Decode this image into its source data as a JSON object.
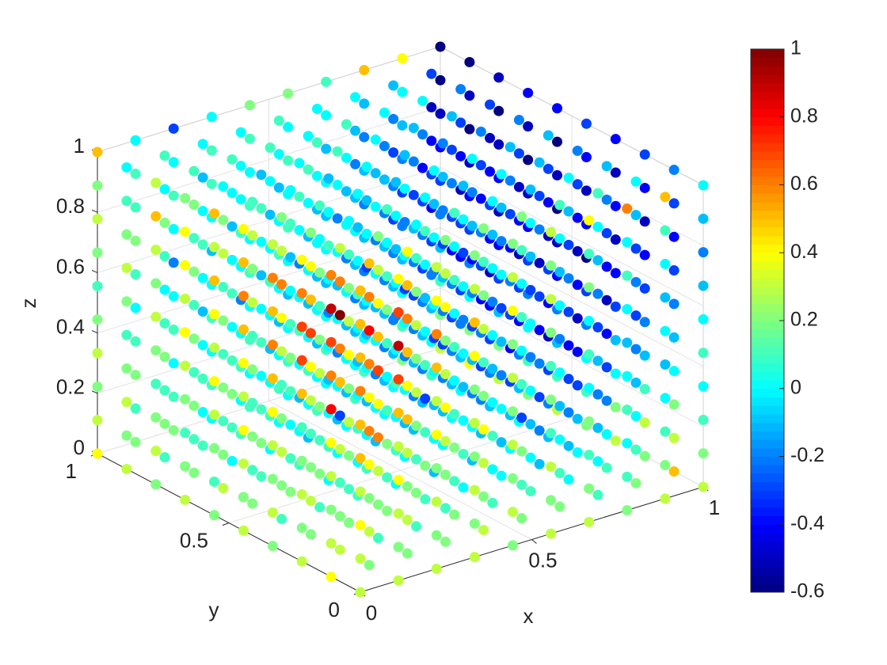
{
  "chart_data": {
    "type": "scatter3d",
    "x_label": "x",
    "y_label": "y",
    "z_label": "z",
    "x": [
      0,
      0.1111,
      0.2222,
      0.3333,
      0.4444,
      0.5556,
      0.6667,
      0.7778,
      0.8889,
      1
    ],
    "y": [
      0,
      0.1111,
      0.2222,
      0.3333,
      0.4444,
      0.5556,
      0.6667,
      0.7778,
      0.8889,
      1
    ],
    "z": [
      0,
      0.1111,
      0.2222,
      0.3333,
      0.4444,
      0.5556,
      0.6667,
      0.7778,
      0.8889,
      1
    ],
    "xlim": [
      0,
      1
    ],
    "ylim": [
      0,
      1
    ],
    "zlim": [
      0,
      1
    ],
    "xticks": [
      0,
      0.5,
      1
    ],
    "yticks": [
      0,
      0.5,
      1
    ],
    "zticks": [
      0,
      0.2,
      0.4,
      0.6,
      0.8,
      1
    ],
    "colormap": "jet",
    "clim": [
      -0.6,
      1
    ],
    "cticks": [
      -0.6,
      -0.4,
      -0.2,
      0,
      0.2,
      0.4,
      0.6,
      0.8,
      1
    ],
    "grid": true,
    "values": [
      [
        [
          0.3,
          0.3,
          0.4,
          0.3,
          0.5,
          0.5,
          0.6,
          0.5,
          0.5,
          0.5
        ],
        [
          0.4,
          0.3,
          0.2,
          0.3,
          0.4,
          0.8,
          0.6,
          0.7,
          0.9,
          0.6
        ],
        [
          0.3,
          0.2,
          0.3,
          0.2,
          0.1,
          0.5,
          0.7,
          0.7,
          0.6,
          0.4
        ],
        [
          0.2,
          0.3,
          0.2,
          0.3,
          0.4,
          0.5,
          0.6,
          0.5,
          0.6,
          0.3
        ],
        [
          0.3,
          0.2,
          0.3,
          0.4,
          0.3,
          0.4,
          0.5,
          0.6,
          0.5,
          0.4
        ],
        [
          0.2,
          0.1,
          0.2,
          0.3,
          0.4,
          0.3,
          0.4,
          0.5,
          0.3,
          0.5
        ],
        [
          0.3,
          0.2,
          0.1,
          0.2,
          0.3,
          0.4,
          0.3,
          0.4,
          0.4,
          0.2
        ],
        [
          0.2,
          0.3,
          0.2,
          0.1,
          0.2,
          0.3,
          0.2,
          0.3,
          0.5,
          0.3
        ],
        [
          0.3,
          0.2,
          0.3,
          0.2,
          0.1,
          0.2,
          0.3,
          0.2,
          0.1,
          0.0
        ],
        [
          0.4,
          0.3,
          0.2,
          0.3,
          0.2,
          0.1,
          0.2,
          0.3,
          0.2,
          0.5
        ]
      ],
      [
        [
          0.3,
          0.2,
          0.3,
          0.4,
          0.3,
          0.5,
          0.7,
          0.9,
          0.7,
          0.4
        ],
        [
          0.2,
          0.3,
          0.2,
          0.4,
          0.6,
          0.4,
          0.6,
          0.8,
          0.6,
          0.5
        ],
        [
          0.3,
          0.2,
          0.1,
          0.3,
          -0.3,
          0.5,
          0.6,
          1.0,
          0.6,
          0.3
        ],
        [
          0.2,
          0.3,
          0.2,
          0.1,
          0.3,
          0.4,
          0.7,
          0.5,
          0.4,
          0.2
        ],
        [
          0.1,
          0.2,
          0.3,
          0.2,
          0.1,
          0.3,
          0.4,
          0.6,
          0.3,
          0.2
        ],
        [
          0.2,
          0.1,
          0.2,
          0.1,
          0.2,
          0.1,
          0.3,
          0.2,
          0.3,
          0.1
        ],
        [
          0.3,
          0.2,
          0.1,
          0.2,
          0.1,
          0.2,
          0.1,
          0.3,
          0.2,
          0.0
        ],
        [
          0.2,
          0.1,
          0.2,
          0.1,
          0.2,
          0.1,
          0.2,
          0.1,
          0.2,
          0.1
        ],
        [
          0.1,
          0.2,
          0.1,
          0.2,
          0.1,
          0.0,
          0.1,
          0.2,
          0.0,
          0.1
        ],
        [
          0.2,
          0.1,
          0.2,
          0.1,
          0.0,
          0.1,
          0.2,
          0.1,
          0.1,
          0.0
        ]
      ],
      [
        [
          0.3,
          0.2,
          0.3,
          0.2,
          0.4,
          0.3,
          0.5,
          0.6,
          0.4,
          0.3
        ],
        [
          0.2,
          0.3,
          0.2,
          0.3,
          0.5,
          0.4,
          0.5,
          0.6,
          0.5,
          0.4
        ],
        [
          0.1,
          0.2,
          0.3,
          0.6,
          0.4,
          0.7,
          0.5,
          0.4,
          0.3,
          0.2
        ],
        [
          0.2,
          0.1,
          0.2,
          0.3,
          0.2,
          0.4,
          0.3,
          0.2,
          0.1,
          0.0
        ],
        [
          0.1,
          0.2,
          0.1,
          0.2,
          0.3,
          0.2,
          0.1,
          0.2,
          0.0,
          0.1
        ],
        [
          0.2,
          0.1,
          0.0,
          0.1,
          0.2,
          0.1,
          0.0,
          -0.1,
          0.1,
          0.0
        ],
        [
          0.1,
          0.2,
          0.1,
          0.0,
          0.1,
          0.0,
          -0.1,
          0.0,
          0.1,
          -0.1
        ],
        [
          0.0,
          0.1,
          0.2,
          0.1,
          0.0,
          0.1,
          0.0,
          -0.1,
          0.0,
          0.1
        ],
        [
          0.1,
          0.0,
          0.1,
          0.0,
          -0.1,
          0.0,
          0.1,
          0.0,
          -0.1,
          0.0
        ],
        [
          0.2,
          0.1,
          0.0,
          0.1,
          0.0,
          -0.2,
          0.0,
          0.1,
          0.0,
          -0.3
        ]
      ],
      [
        [
          0.3,
          0.2,
          0.3,
          0.2,
          0.3,
          0.2,
          0.4,
          0.5,
          0.3,
          0.2
        ],
        [
          0.2,
          0.1,
          0.2,
          0.3,
          0.4,
          0.3,
          0.2,
          0.4,
          0.3,
          0.2
        ],
        [
          0.1,
          0.2,
          0.1,
          0.2,
          0.3,
          0.2,
          0.3,
          0.2,
          0.1,
          0.0
        ],
        [
          0.2,
          0.1,
          0.2,
          0.1,
          0.0,
          0.1,
          0.2,
          0.1,
          0.0,
          0.1
        ],
        [
          0.1,
          0.0,
          0.1,
          0.0,
          -0.1,
          0.0,
          0.1,
          0.0,
          -0.1,
          0.0
        ],
        [
          0.0,
          0.1,
          0.0,
          -0.1,
          0.0,
          -0.2,
          0.0,
          0.1,
          0.0,
          -0.1
        ],
        [
          0.1,
          0.0,
          -0.1,
          0.0,
          0.1,
          0.0,
          -0.2,
          0.0,
          0.1,
          0.0
        ],
        [
          0.0,
          0.1,
          0.0,
          -0.1,
          0.0,
          0.1,
          0.0,
          -0.1,
          0.0,
          0.1
        ],
        [
          0.1,
          0.0,
          0.1,
          0.0,
          -0.2,
          0.0,
          0.1,
          0.0,
          0.0,
          0.0
        ],
        [
          0.0,
          0.1,
          0.0,
          0.1,
          0.0,
          -0.1,
          0.0,
          0.1,
          0.1,
          0.0
        ]
      ],
      [
        [
          0.2,
          0.3,
          0.2,
          0.3,
          0.2,
          0.3,
          0.2,
          0.4,
          0.3,
          0.2
        ],
        [
          0.3,
          0.2,
          0.3,
          0.4,
          0.2,
          0.1,
          0.3,
          0.2,
          0.1,
          0.2
        ],
        [
          0.2,
          0.1,
          0.2,
          0.1,
          0.0,
          0.1,
          0.0,
          0.1,
          0.0,
          0.1
        ],
        [
          0.1,
          0.2,
          0.1,
          -0.3,
          0.1,
          0.0,
          -0.1,
          0.0,
          0.1,
          0.0
        ],
        [
          0.0,
          0.1,
          0.0,
          0.1,
          0.0,
          -0.2,
          0.0,
          -0.1,
          0.0,
          -0.1
        ],
        [
          0.1,
          0.0,
          -0.1,
          0.0,
          -0.1,
          0.0,
          -0.3,
          0.0,
          -0.1,
          0.0
        ],
        [
          0.0,
          -0.1,
          0.0,
          -0.2,
          0.0,
          -0.1,
          0.0,
          -0.2,
          0.0,
          0.1
        ],
        [
          -0.1,
          0.0,
          0.1,
          0.0,
          -0.1,
          0.0,
          -0.1,
          0.0,
          0.1,
          0.0
        ],
        [
          0.0,
          0.1,
          0.0,
          -0.1,
          0.0,
          0.1,
          0.0,
          -0.1,
          0.0,
          0.1
        ],
        [
          0.1,
          0.0,
          0.1,
          0.0,
          0.1,
          0.0,
          0.1,
          0.0,
          0.1,
          0.2
        ]
      ],
      [
        [
          0.3,
          0.2,
          0.3,
          0.1,
          0.2,
          0.1,
          0.2,
          0.3,
          0.2,
          0.3
        ],
        [
          0.2,
          0.1,
          0.2,
          -0.3,
          0.1,
          0.0,
          0.1,
          0.0,
          0.1,
          0.2
        ],
        [
          0.1,
          0.0,
          0.1,
          0.0,
          -0.1,
          0.0,
          -0.2,
          0.0,
          -0.1,
          0.0
        ],
        [
          0.0,
          0.1,
          0.0,
          -0.1,
          0.0,
          -0.2,
          0.0,
          -0.3,
          0.0,
          -0.1
        ],
        [
          -0.1,
          0.0,
          -0.1,
          0.0,
          -0.3,
          0.0,
          -0.2,
          0.0,
          -0.1,
          0.0
        ],
        [
          0.0,
          -0.1,
          0.0,
          -0.2,
          0.0,
          -0.3,
          0.0,
          -0.2,
          0.0,
          -0.1
        ],
        [
          -0.1,
          0.0,
          -0.2,
          0.0,
          -0.1,
          0.0,
          -0.2,
          0.0,
          -0.1,
          0.0
        ],
        [
          0.0,
          -0.1,
          0.0,
          -0.1,
          0.0,
          -0.2,
          0.0,
          -0.1,
          0.0,
          0.1
        ],
        [
          0.1,
          0.0,
          -0.1,
          0.0,
          -0.1,
          0.0,
          -0.1,
          0.0,
          0.1,
          0.0
        ],
        [
          0.0,
          0.1,
          0.0,
          -0.1,
          0.0,
          0.1,
          0.0,
          0.1,
          0.0,
          0.2
        ]
      ],
      [
        [
          0.3,
          0.2,
          0.1,
          0.2,
          0.0,
          0.1,
          0.0,
          0.2,
          0.1,
          0.4
        ],
        [
          0.2,
          0.1,
          0.0,
          -0.1,
          0.0,
          -0.2,
          0.0,
          -0.1,
          0.0,
          0.1
        ],
        [
          0.1,
          0.0,
          -0.1,
          0.0,
          -0.2,
          0.0,
          -0.3,
          -0.1,
          0.0,
          -0.1
        ],
        [
          0.0,
          -0.1,
          0.0,
          -0.2,
          -0.1,
          -0.3,
          0.0,
          -0.2,
          -0.1,
          0.0
        ],
        [
          -0.1,
          0.0,
          -0.2,
          -0.1,
          -0.3,
          -0.2,
          -0.4,
          -0.1,
          -0.2,
          0.0
        ],
        [
          0.0,
          -0.1,
          -0.2,
          -0.3,
          -0.2,
          -0.1,
          -0.3,
          -0.2,
          -0.1,
          -0.2
        ],
        [
          -0.1,
          -0.2,
          -0.1,
          -0.2,
          -0.3,
          -0.2,
          -0.1,
          -0.3,
          -0.2,
          -0.1
        ],
        [
          0.0,
          -0.1,
          -0.2,
          -0.1,
          -0.2,
          -0.1,
          -0.2,
          -0.1,
          -0.2,
          0.0
        ],
        [
          0.1,
          0.0,
          -0.1,
          -0.2,
          -0.1,
          0.0,
          -0.1,
          -0.2,
          -0.1,
          0.0
        ],
        [
          0.0,
          0.1,
          0.0,
          -0.1,
          0.0,
          -0.1,
          0.0,
          -0.1,
          0.0,
          0.1
        ]
      ],
      [
        [
          0.2,
          0.1,
          0.0,
          0.1,
          0.0,
          -0.1,
          0.0,
          0.1,
          0.0,
          0.6
        ],
        [
          0.1,
          0.0,
          -0.1,
          -0.2,
          -0.1,
          -0.3,
          -0.2,
          -0.1,
          0.0,
          0.1
        ],
        [
          0.0,
          -0.1,
          -0.2,
          -0.3,
          -0.4,
          -0.3,
          -0.2,
          -0.3,
          -0.1,
          0.0
        ],
        [
          -0.1,
          -0.2,
          -0.3,
          -0.2,
          -0.4,
          -0.3,
          -0.5,
          -0.2,
          -0.3,
          -0.1
        ],
        [
          0.0,
          -0.1,
          -0.3,
          -0.4,
          -0.3,
          -0.2,
          -0.4,
          -0.3,
          -0.2,
          -0.1
        ],
        [
          -0.1,
          -0.2,
          -0.3,
          -0.2,
          -0.4,
          -0.3,
          -0.2,
          -0.4,
          -0.3,
          -0.2
        ],
        [
          0.0,
          -0.1,
          -0.2,
          -0.3,
          -0.2,
          -0.4,
          -0.3,
          -0.2,
          -0.3,
          -0.1
        ],
        [
          -0.1,
          -0.2,
          -0.1,
          -0.2,
          -0.3,
          -0.2,
          -0.3,
          -0.4,
          -0.2,
          0.0
        ],
        [
          0.0,
          -0.1,
          -0.2,
          -0.1,
          -0.2,
          -0.3,
          -0.2,
          -0.3,
          -0.2,
          -0.1
        ],
        [
          0.1,
          0.0,
          -0.1,
          -0.2,
          -0.1,
          -0.2,
          -0.1,
          -0.2,
          -0.1,
          0.5
        ]
      ],
      [
        [
          0.3,
          0.2,
          0.1,
          0.0,
          -0.1,
          0.0,
          -0.1,
          0.0,
          0.1,
          0.5
        ],
        [
          0.2,
          0.1,
          0.0,
          -0.1,
          -0.2,
          -0.3,
          -0.2,
          -0.3,
          -0.1,
          0.0
        ],
        [
          0.1,
          0.0,
          -0.2,
          -0.3,
          -0.4,
          -0.5,
          -0.4,
          -0.3,
          -0.2,
          -0.1
        ],
        [
          0.0,
          -0.1,
          -0.3,
          -0.4,
          -0.5,
          -0.4,
          -0.5,
          -0.4,
          -0.3,
          -0.2
        ],
        [
          -0.1,
          -0.2,
          -0.3,
          -0.5,
          -0.4,
          -0.3,
          -0.5,
          -0.4,
          -0.3,
          -0.1
        ],
        [
          0.0,
          -0.1,
          -0.2,
          -0.4,
          -0.3,
          -0.5,
          -0.4,
          -0.5,
          -0.3,
          -0.2
        ],
        [
          -0.1,
          -0.2,
          -0.3,
          -0.4,
          -0.5,
          -0.4,
          -0.3,
          -0.4,
          -0.5,
          -0.3
        ],
        [
          0.0,
          -0.1,
          -0.2,
          -0.3,
          -0.4,
          -0.3,
          -0.5,
          -0.4,
          -0.3,
          -0.2
        ],
        [
          0.1,
          0.0,
          -0.1,
          -0.2,
          -0.3,
          -0.4,
          -0.3,
          -0.4,
          -0.5,
          -0.3
        ],
        [
          0.2,
          0.1,
          0.0,
          -0.1,
          -0.2,
          -0.3,
          -0.2,
          -0.1,
          0.0,
          0.4
        ]
      ],
      [
        [
          0.3,
          0.2,
          0.1,
          0.0,
          0.1,
          0.0,
          -0.1,
          -0.2,
          -0.1,
          0.0
        ],
        [
          0.5,
          0.3,
          0.2,
          0.0,
          -0.1,
          -0.2,
          -0.3,
          -0.4,
          -0.3,
          -0.2
        ],
        [
          0.2,
          0.3,
          0.1,
          -0.1,
          -0.2,
          -0.3,
          -0.4,
          -0.5,
          -0.4,
          -0.3
        ],
        [
          0.3,
          0.2,
          0.0,
          -0.1,
          -0.3,
          -0.4,
          -0.5,
          -0.4,
          -0.5,
          -0.4
        ],
        [
          0.2,
          0.1,
          0.0,
          -0.2,
          -0.3,
          -0.6,
          -0.4,
          -0.5,
          -0.4,
          -0.3
        ],
        [
          0.3,
          0.1,
          -0.1,
          -0.2,
          -0.4,
          -0.5,
          -0.6,
          -0.5,
          -0.6,
          -0.4
        ],
        [
          0.2,
          0.1,
          0.0,
          -0.2,
          -0.3,
          -0.4,
          -0.5,
          -0.6,
          -0.5,
          -0.4
        ],
        [
          0.3,
          0.2,
          -0.1,
          -0.3,
          -0.4,
          -0.5,
          -0.4,
          -0.5,
          -0.6,
          -0.5
        ],
        [
          0.4,
          0.2,
          0.0,
          -0.2,
          -0.3,
          -0.4,
          -0.5,
          -0.6,
          -0.5,
          -0.6
        ],
        [
          0.3,
          0.2,
          0.1,
          -0.1,
          -0.2,
          -0.3,
          -0.4,
          -0.5,
          -0.6,
          -0.6
        ]
      ]
    ]
  }
}
